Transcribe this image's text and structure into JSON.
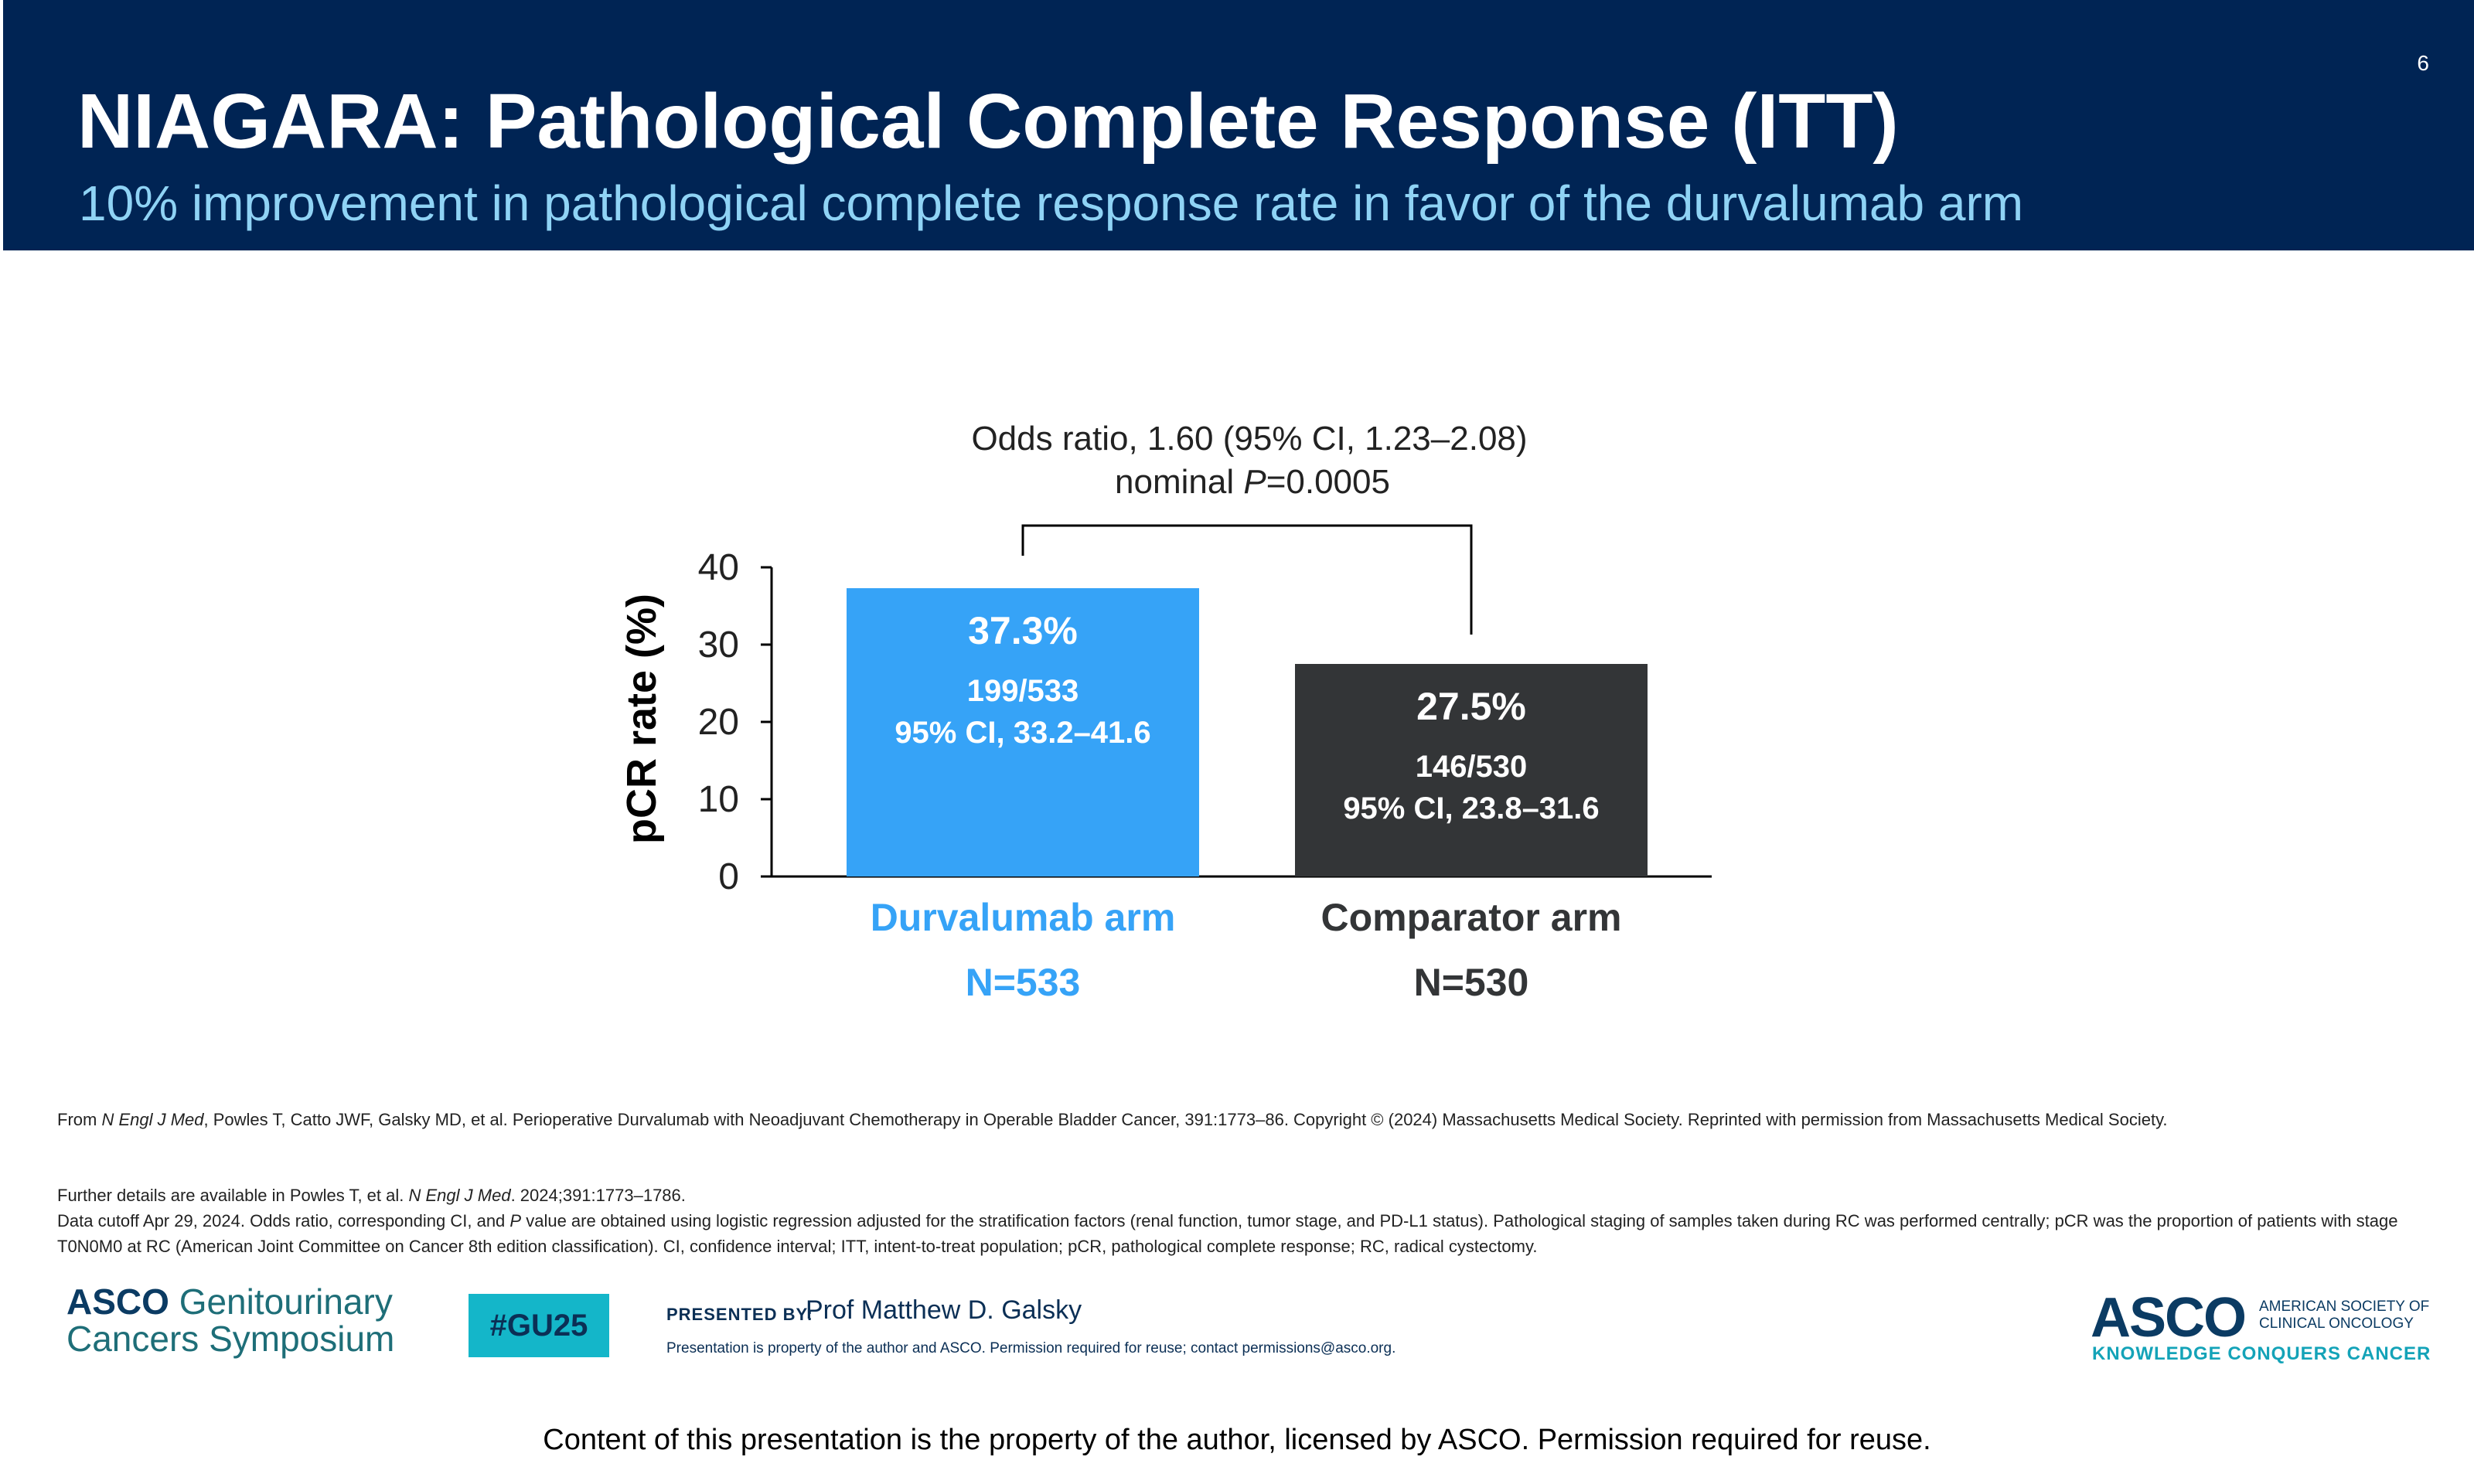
{
  "slide": {
    "number": "6",
    "title": "NIAGARA: Pathological Complete Response (ITT)",
    "subtitle": "10% improvement in pathological complete response rate in favor of the durvalumab arm"
  },
  "chart_data": {
    "type": "bar",
    "ylabel": "pCR rate (%)",
    "ylim": [
      0,
      40
    ],
    "yticks": [
      0,
      10,
      20,
      30,
      40
    ],
    "categories": [
      "Durvalumab arm",
      "Comparator arm"
    ],
    "category_n": [
      "N=533",
      "N=530"
    ],
    "values": [
      37.3,
      27.5
    ],
    "value_labels": [
      "37.3%",
      "27.5%"
    ],
    "counts": [
      "199/533",
      "146/530"
    ],
    "ci_labels": [
      "95% CI, 33.2–41.6",
      "95% CI, 23.8–31.6"
    ],
    "colors": [
      "#36a3f7",
      "#333537"
    ],
    "comparison": {
      "line1": "Odds ratio, 1.60 (95% CI, 1.23–2.08)",
      "line2_prefix": "nominal ",
      "line2_italic": "P",
      "line2_suffix": "=0.0005"
    }
  },
  "source": {
    "from": "From ",
    "journal": "N Engl J Med",
    "text": ", Powles T, Catto JWF, Galsky MD, et al. Perioperative Durvalumab with Neoadjuvant Chemotherapy in Operable Bladder Cancer, 391:1773–86. Copyright © (2024) Massachusetts Medical Society. Reprinted with permission from Massachusetts Medical Society."
  },
  "notes": {
    "line1_prefix": "Further details are available in Powles T, et al. ",
    "line1_journal": "N Engl J Med",
    "line1_suffix": ". 2024;391:1773–1786.",
    "line2_prefix": "Data cutoff Apr 29, 2024. Odds ratio, corresponding CI, and ",
    "line2_italic": "P",
    "line2_suffix": " value are obtained using logistic regression adjusted for the stratification factors (renal function, tumor stage, and PD-L1 status). Pathological staging of samples taken during RC was performed centrally; pCR was the proportion of patients with stage T0N0M0 at RC (American Joint Committee on Cancer 8th edition classification). CI, confidence interval; ITT, intent-to-treat population; pCR, pathological complete response; RC, radical cystectomy."
  },
  "branding": {
    "left_logo_asco": "ASCO",
    "left_logo_line1": "Genitourinary",
    "left_logo_line2": "Cancers Symposium",
    "hashtag": "#GU25",
    "presented_by": "PRESENTED BY:",
    "presenter": "Prof Matthew D. Galsky",
    "property_notice": "Presentation is property of the author and ASCO. Permission required for reuse; contact permissions@asco.org.",
    "right_logo": "ASCO",
    "right_logo_society_1": "AMERICAN SOCIETY OF",
    "right_logo_society_2": "CLINICAL ONCOLOGY",
    "right_logo_tagline": "KNOWLEDGE CONQUERS CANCER"
  },
  "footer": "Content of this presentation is the property of the author, licensed by ASCO. Permission required for reuse."
}
